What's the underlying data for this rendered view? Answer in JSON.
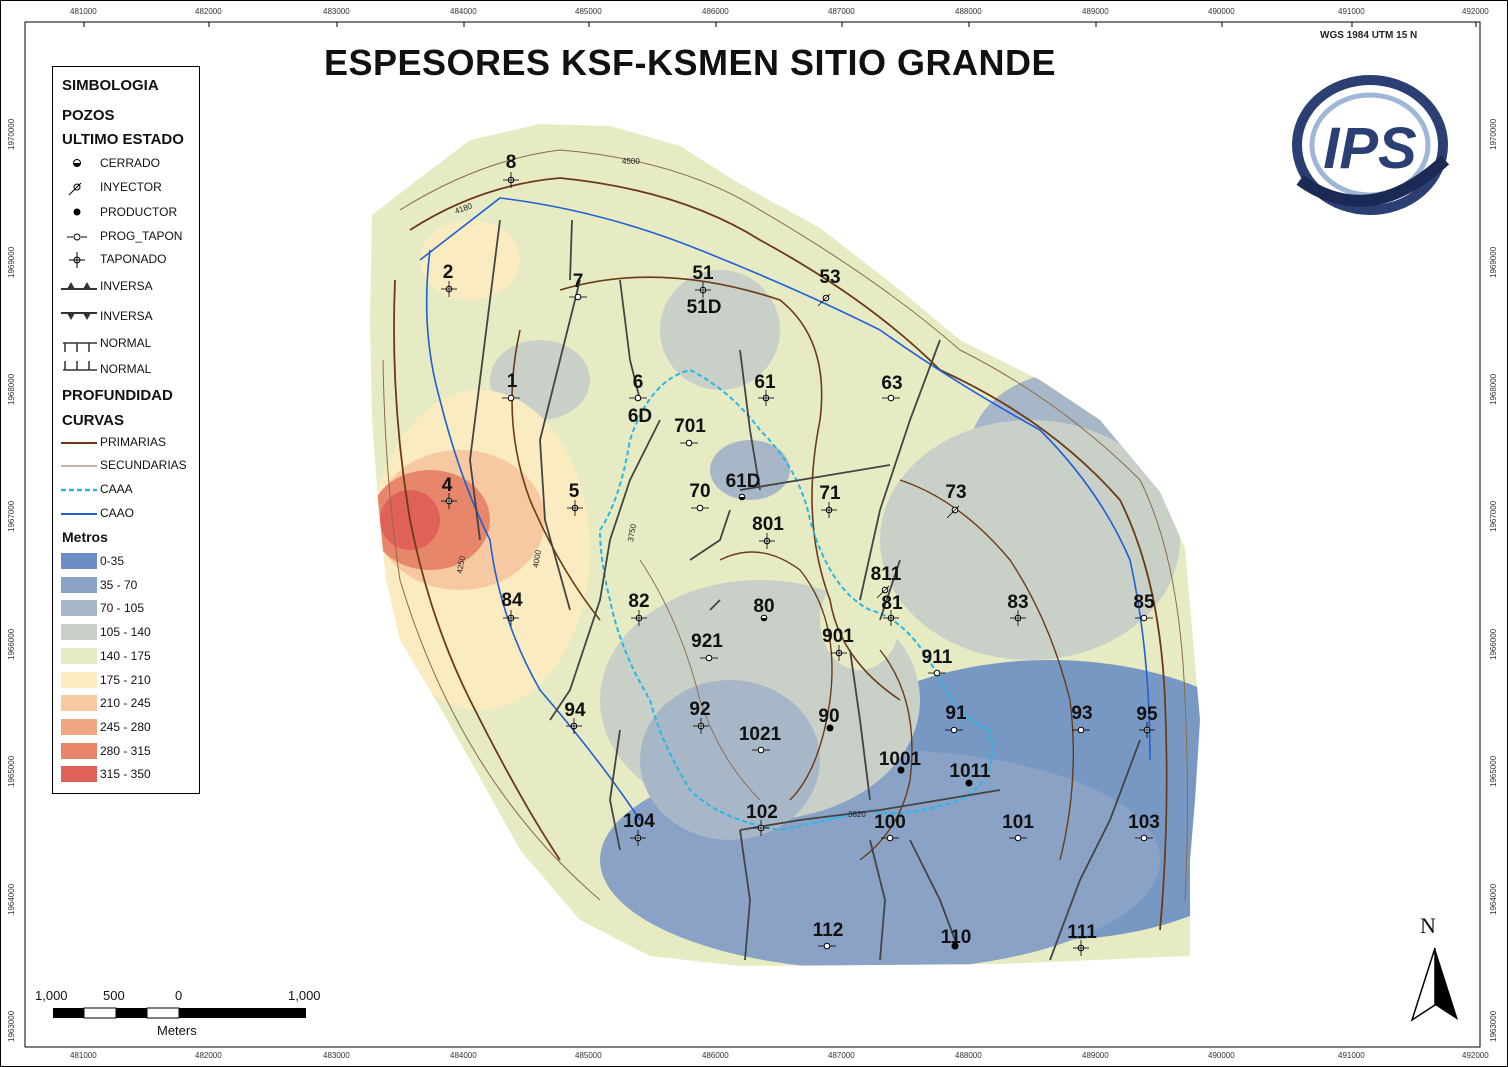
{
  "title": "ESPESORES KSF-KSMEN SITIO GRANDE",
  "projection": "WGS 1984 UTM 15 N",
  "logo_text": "IPS",
  "x_ticks": [
    "481000",
    "482000",
    "483000",
    "484000",
    "485000",
    "486000",
    "487000",
    "488000",
    "489000",
    "490000",
    "491000",
    "492000"
  ],
  "y_ticks": [
    "1970000",
    "1969000",
    "1968000",
    "1967000",
    "1966000",
    "1965000",
    "1964000",
    "1963000"
  ],
  "legend": {
    "heading": "SIMBOLOGIA",
    "wells_heading": "POZOS",
    "status_heading": "ULTIMO ESTADO",
    "status": [
      {
        "label": "CERRADO",
        "icon": "closed-well-icon"
      },
      {
        "label": "INYECTOR",
        "icon": "injector-well-icon"
      },
      {
        "label": "PRODUCTOR",
        "icon": "producer-well-icon"
      },
      {
        "label": "PROG_TAPON",
        "icon": "planned-plug-icon"
      },
      {
        "label": "TAPONADO",
        "icon": "plugged-well-icon"
      }
    ],
    "faults": [
      {
        "label": "INVERSA",
        "icon": "reverse-fault-up-icon"
      },
      {
        "label": "INVERSA",
        "icon": "reverse-fault-down-icon"
      },
      {
        "label": "NORMAL",
        "icon": "normal-fault-down-icon"
      },
      {
        "label": "NORMAL",
        "icon": "normal-fault-up-icon"
      }
    ],
    "depth_heading": "PROFUNDIDAD",
    "curves_heading": "CURVAS",
    "curves": [
      {
        "label": "PRIMARIAS",
        "color": "#6b3a17"
      },
      {
        "label": "SECUNDARIAS",
        "color": "#8a6a4a"
      },
      {
        "label": "CAAA",
        "color": "#29b6e8"
      },
      {
        "label": "CAAO",
        "color": "#1f5fd6"
      }
    ],
    "meters_heading": "Metros",
    "classes": [
      {
        "label": "0-35",
        "color": "#6b8fc4"
      },
      {
        "label": "35 - 70",
        "color": "#8aa2c6"
      },
      {
        "label": "70 - 105",
        "color": "#a8b7c8"
      },
      {
        "label": "105 - 140",
        "color": "#c9d0c7"
      },
      {
        "label": "140 - 175",
        "color": "#e6ebc4"
      },
      {
        "label": "175 - 210",
        "color": "#faecc0"
      },
      {
        "label": "210 - 245",
        "color": "#f7c9a0"
      },
      {
        "label": "245 - 280",
        "color": "#f0a683"
      },
      {
        "label": "280 - 315",
        "color": "#e8866b"
      },
      {
        "label": "315 - 350",
        "color": "#e06157"
      }
    ]
  },
  "scalebar": {
    "labels": [
      "1,000",
      "500",
      "0",
      "1,000"
    ],
    "unit": "Meters"
  },
  "north": "N",
  "contour_labels": [
    "4500",
    "4180",
    "4250",
    "4000",
    "3750",
    "3820"
  ],
  "wells": [
    "8",
    "2",
    "7",
    "51",
    "51D",
    "53",
    "1",
    "6",
    "6D",
    "61",
    "63",
    "701",
    "61D",
    "70",
    "4",
    "5",
    "71",
    "73",
    "801",
    "811",
    "84",
    "82",
    "80",
    "81",
    "83",
    "85",
    "921",
    "901",
    "911",
    "94",
    "92",
    "91",
    "93",
    "95",
    "1021",
    "90",
    "1001",
    "1011",
    "104",
    "102",
    "100",
    "101",
    "103",
    "112",
    "110",
    "111"
  ]
}
